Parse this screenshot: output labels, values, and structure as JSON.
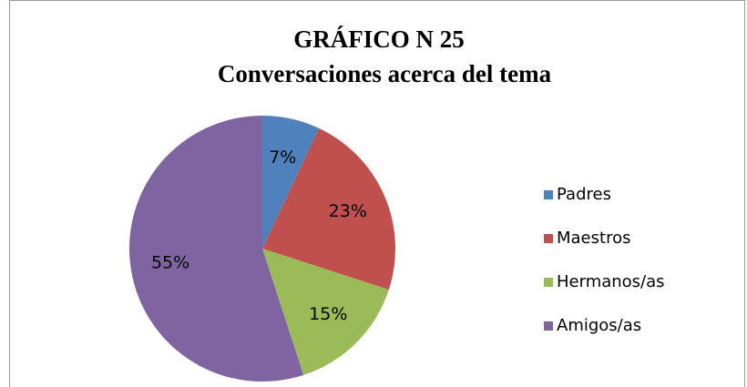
{
  "chart_data": {
    "type": "pie",
    "title": "GRÁFICO N  25",
    "subtitle": "Conversaciones acerca del tema",
    "categories": [
      "Padres",
      "Maestros",
      "Hermanos/as",
      "Amigos/as"
    ],
    "values": [
      7,
      23,
      15,
      55
    ],
    "value_labels": [
      "7%",
      "23%",
      "15%",
      "55%"
    ],
    "colors": [
      "#4f81bd",
      "#c0504d",
      "#9bbb59",
      "#8064a2"
    ],
    "legend": "right"
  }
}
